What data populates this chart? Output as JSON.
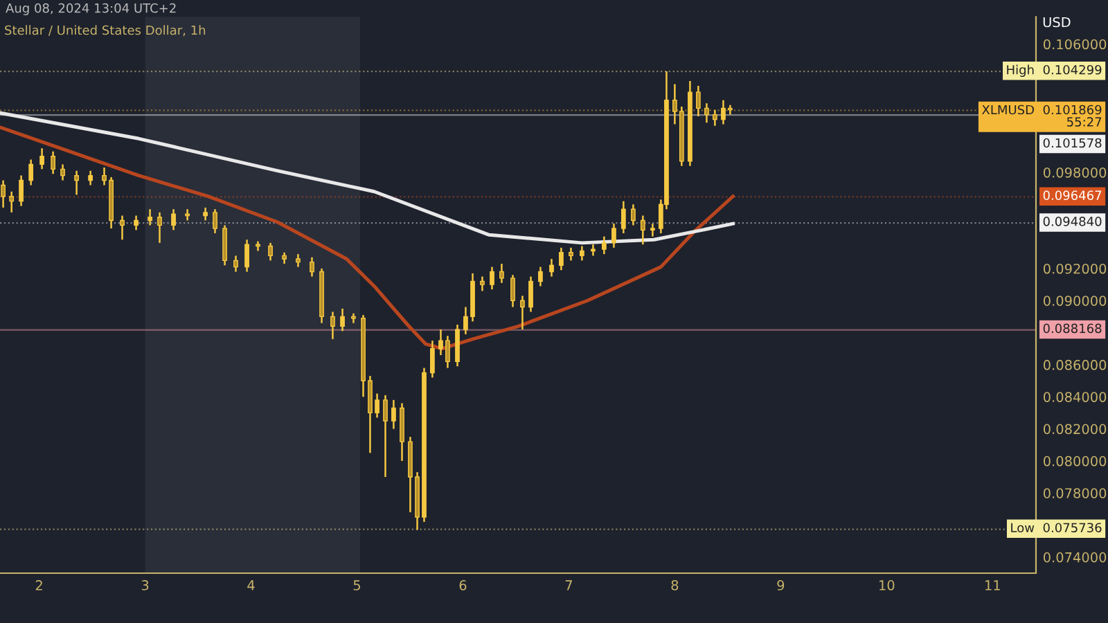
{
  "chart_data": {
    "type": "candlestick",
    "title": "Stellar / United States Dollar, 1h",
    "ylabel": "USD",
    "annotations": [
      "Aug 08, 2024 13:04 UTC+2"
    ],
    "xlim": [
      1.63,
      11.41
    ],
    "xticks": [
      2,
      3,
      4,
      5,
      6,
      7,
      8,
      9,
      10,
      11
    ],
    "ylim": [
      0.073,
      0.1077
    ],
    "yticks": [
      {
        "value": 0.074,
        "label": "0.074000"
      },
      {
        "value": 0.078,
        "label": "0.078000"
      },
      {
        "value": 0.08,
        "label": "0.080000"
      },
      {
        "value": 0.082,
        "label": "0.082000"
      },
      {
        "value": 0.084,
        "label": "0.084000"
      },
      {
        "value": 0.086,
        "label": "0.086000"
      },
      {
        "value": 0.09,
        "label": "0.090000"
      },
      {
        "value": 0.092,
        "label": "0.092000"
      },
      {
        "value": 0.098,
        "label": "0.098000"
      },
      {
        "value": 0.106,
        "label": "0.106000"
      }
    ],
    "grid": false,
    "bands": [
      {
        "axis": "x",
        "from": 3.0,
        "to": 5.03,
        "color": "#2a2e39"
      }
    ],
    "ref_lines": [
      {
        "axis": "y",
        "value": 0.104299,
        "label": "High  0.104299",
        "color": "#f5eea0",
        "line_style": "dotted"
      },
      {
        "axis": "y",
        "value": 0.101869,
        "label": "XLMUSD  0.101869\n55:27",
        "color": "#f5b93a",
        "line_style": "dotted"
      },
      {
        "axis": "y",
        "value": 0.101578,
        "label": "0.101578",
        "color": "#f2f2f2",
        "line_style": "solid"
      },
      {
        "axis": "y",
        "value": 0.096467,
        "label": "0.096467",
        "color": "#d9531e",
        "line_style": "dotted"
      },
      {
        "axis": "y",
        "value": 0.09484,
        "label": "0.094840",
        "color": "#f2f2f2",
        "line_style": "dotted"
      },
      {
        "axis": "y",
        "value": 0.088168,
        "label": "0.088168",
        "color": "#f0a0a8",
        "line_style": "solid"
      },
      {
        "axis": "y",
        "value": 0.075736,
        "label": "Low  0.075736",
        "color": "#f5eea0",
        "line_style": "dotted"
      }
    ],
    "series": [
      {
        "type": "line",
        "color": "#b8461f",
        "x": [
          1.634,
          2.026,
          2.941,
          3.595,
          4.248,
          4.902,
          5.163,
          5.477,
          5.647,
          5.804,
          6.092,
          6.523,
          7.176,
          7.869,
          8.183,
          8.549
        ],
        "values": [
          0.1008,
          0.0999,
          0.0978,
          0.0965,
          0.0949,
          0.0926,
          0.0909,
          0.0885,
          0.0873,
          0.087,
          0.0876,
          0.0884,
          0.09,
          0.0921,
          0.0943,
          0.0965
        ]
      },
      {
        "type": "line",
        "color": "#e8e8e8",
        "x": [
          1.634,
          2.941,
          4.248,
          5.163,
          6.248,
          7.124,
          7.804,
          8.183,
          8.549
        ],
        "values": [
          0.1017,
          0.1001,
          0.0981,
          0.0968,
          0.0941,
          0.0936,
          0.0938,
          0.0943,
          0.0948
        ]
      },
      {
        "type": "candlestick",
        "color": "#f5c842",
        "x": [
          1.66,
          1.739,
          1.83,
          1.922,
          2.026,
          2.131,
          2.222,
          2.353,
          2.484,
          2.614,
          2.68,
          2.784,
          2.915,
          3.046,
          3.137,
          3.268,
          3.399,
          3.569,
          3.66,
          3.752,
          3.856,
          3.961,
          4.065,
          4.183,
          4.314,
          4.444,
          4.575,
          4.667,
          4.771,
          4.863,
          4.967,
          5.059,
          5.124,
          5.19,
          5.268,
          5.346,
          5.425,
          5.503,
          5.569,
          5.634,
          5.712,
          5.791,
          5.856,
          5.948,
          6.026,
          6.092,
          6.183,
          6.275,
          6.366,
          6.471,
          6.562,
          6.641,
          6.732,
          6.837,
          6.928,
          7.02,
          7.124,
          7.229,
          7.333,
          7.425,
          7.516,
          7.608,
          7.699,
          7.791,
          7.869,
          7.922,
          8.0,
          8.065,
          8.144,
          8.222,
          8.301,
          8.379,
          8.458,
          8.523
        ],
        "ohlc": [
          [
            0.0972,
            0.0975,
            0.0958,
            0.0965
          ],
          [
            0.0965,
            0.0968,
            0.0955,
            0.0962
          ],
          [
            0.0962,
            0.0978,
            0.0959,
            0.0975
          ],
          [
            0.0975,
            0.0988,
            0.0972,
            0.0985
          ],
          [
            0.0985,
            0.0995,
            0.0982,
            0.099
          ],
          [
            0.099,
            0.0993,
            0.0979,
            0.0982
          ],
          [
            0.0982,
            0.0985,
            0.0975,
            0.0978
          ],
          [
            0.0978,
            0.0981,
            0.0966,
            0.0975
          ],
          [
            0.0975,
            0.0981,
            0.0972,
            0.0978
          ],
          [
            0.0978,
            0.0983,
            0.0972,
            0.0975
          ],
          [
            0.0975,
            0.0977,
            0.0945,
            0.095
          ],
          [
            0.095,
            0.0953,
            0.0938,
            0.0947
          ],
          [
            0.0947,
            0.0953,
            0.0944,
            0.095
          ],
          [
            0.095,
            0.0957,
            0.0947,
            0.0952
          ],
          [
            0.0952,
            0.0955,
            0.0936,
            0.0947
          ],
          [
            0.0947,
            0.0957,
            0.0944,
            0.0954
          ],
          [
            0.0954,
            0.0957,
            0.095,
            0.0953
          ],
          [
            0.0953,
            0.0958,
            0.095,
            0.0955
          ],
          [
            0.0955,
            0.0957,
            0.0942,
            0.0945
          ],
          [
            0.0945,
            0.0947,
            0.0922,
            0.0925
          ],
          [
            0.0925,
            0.0928,
            0.0918,
            0.0921
          ],
          [
            0.0921,
            0.0938,
            0.0918,
            0.0935
          ],
          [
            0.0935,
            0.0937,
            0.0931,
            0.0934
          ],
          [
            0.0934,
            0.0936,
            0.0925,
            0.0928
          ],
          [
            0.0928,
            0.093,
            0.0923,
            0.0926
          ],
          [
            0.0926,
            0.0929,
            0.0921,
            0.0924
          ],
          [
            0.0924,
            0.0927,
            0.0915,
            0.0918
          ],
          [
            0.0918,
            0.092,
            0.0886,
            0.089
          ],
          [
            0.089,
            0.0893,
            0.0876,
            0.0884
          ],
          [
            0.0884,
            0.0895,
            0.0881,
            0.089
          ],
          [
            0.089,
            0.0892,
            0.0886,
            0.0889
          ],
          [
            0.0889,
            0.0891,
            0.084,
            0.085
          ],
          [
            0.085,
            0.0853,
            0.0805,
            0.083
          ],
          [
            0.083,
            0.0842,
            0.0827,
            0.0838
          ],
          [
            0.0838,
            0.0841,
            0.079,
            0.0825
          ],
          [
            0.0825,
            0.0838,
            0.082,
            0.0833
          ],
          [
            0.0833,
            0.0836,
            0.08,
            0.0812
          ],
          [
            0.0812,
            0.0815,
            0.0768,
            0.079
          ],
          [
            0.079,
            0.0793,
            0.0757,
            0.0765
          ],
          [
            0.0765,
            0.0858,
            0.0762,
            0.0855
          ],
          [
            0.0855,
            0.0875,
            0.0852,
            0.087
          ],
          [
            0.087,
            0.0882,
            0.0866,
            0.0875
          ],
          [
            0.0875,
            0.0878,
            0.0858,
            0.0862
          ],
          [
            0.0862,
            0.0885,
            0.0859,
            0.0882
          ],
          [
            0.0882,
            0.0896,
            0.0879,
            0.089
          ],
          [
            0.089,
            0.0917,
            0.0887,
            0.0912
          ],
          [
            0.0912,
            0.0915,
            0.0906,
            0.091
          ],
          [
            0.091,
            0.0921,
            0.0907,
            0.0918
          ],
          [
            0.0918,
            0.0923,
            0.0911,
            0.0914
          ],
          [
            0.0914,
            0.0916,
            0.0896,
            0.09
          ],
          [
            0.09,
            0.0903,
            0.0882,
            0.0896
          ],
          [
            0.0896,
            0.0915,
            0.0893,
            0.0912
          ],
          [
            0.0912,
            0.0921,
            0.0909,
            0.0918
          ],
          [
            0.0918,
            0.0926,
            0.0915,
            0.0922
          ],
          [
            0.0922,
            0.0933,
            0.0919,
            0.093
          ],
          [
            0.093,
            0.0933,
            0.0925,
            0.0928
          ],
          [
            0.0928,
            0.0934,
            0.0925,
            0.0931
          ],
          [
            0.0931,
            0.0935,
            0.0928,
            0.0932
          ],
          [
            0.0932,
            0.094,
            0.0929,
            0.0936
          ],
          [
            0.0936,
            0.0948,
            0.0933,
            0.0945
          ],
          [
            0.0945,
            0.0962,
            0.0942,
            0.0957
          ],
          [
            0.0957,
            0.096,
            0.0947,
            0.095
          ],
          [
            0.095,
            0.0953,
            0.0935,
            0.0944
          ],
          [
            0.0944,
            0.0948,
            0.094,
            0.0945
          ],
          [
            0.0945,
            0.0963,
            0.0942,
            0.096
          ],
          [
            0.096,
            0.1043,
            0.0957,
            0.1025
          ],
          [
            0.1025,
            0.1035,
            0.101,
            0.1018
          ],
          [
            0.1018,
            0.1021,
            0.0984,
            0.0987
          ],
          [
            0.0987,
            0.1037,
            0.0984,
            0.103
          ],
          [
            0.103,
            0.1034,
            0.1015,
            0.102
          ],
          [
            0.102,
            0.1023,
            0.1011,
            0.1016
          ],
          [
            0.1016,
            0.1019,
            0.1009,
            0.1013
          ],
          [
            0.1013,
            0.1025,
            0.101,
            0.102
          ],
          [
            0.102,
            0.1022,
            0.1016,
            0.1019
          ]
        ]
      }
    ]
  }
}
